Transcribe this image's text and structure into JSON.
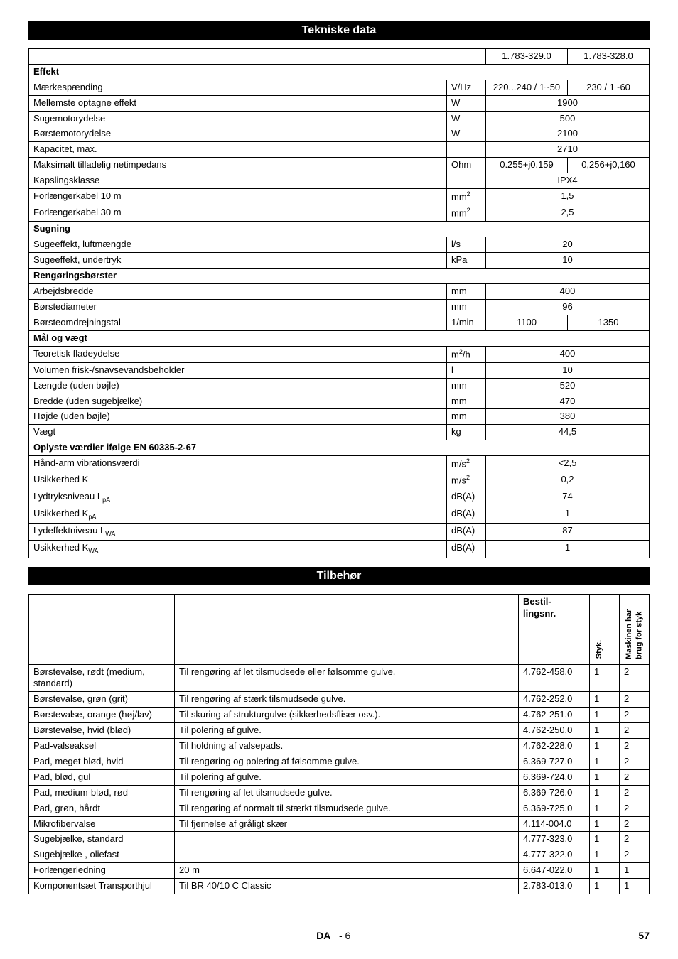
{
  "tech_title": "Tekniske data",
  "acc_title": "Tilbehør",
  "models": [
    "1.783-329.0",
    "1.783-328.0"
  ],
  "tech_sections": [
    {
      "head": "Effekt"
    },
    {
      "label": "Mærkespænding",
      "unit": "V/Hz",
      "v1": "220...240 / 1~50",
      "v2": "230 / 1~60"
    },
    {
      "label": "Mellemste optagne effekt",
      "unit": "W",
      "vspan": "1900"
    },
    {
      "label": "Sugemotorydelse",
      "unit": "W",
      "vspan": "500"
    },
    {
      "label": "Børstemotorydelse",
      "unit": "W",
      "vspan": "2100"
    },
    {
      "label": "Kapacitet, max.",
      "unit": "",
      "vspan": "2710"
    },
    {
      "label": "Maksimalt tilladelig netimpedans",
      "unit": "Ohm",
      "v1": "0.255+j0.159",
      "v2": "0,256+j0,160"
    },
    {
      "label": "Kapslingsklasse",
      "unit": "",
      "vspan": "IPX4"
    },
    {
      "label": "Forlængerkabel 10 m",
      "unit": "mm²",
      "vspan": "1,5"
    },
    {
      "label": "Forlængerkabel 30 m",
      "unit": "mm²",
      "vspan": "2,5"
    },
    {
      "head": "Sugning"
    },
    {
      "label": "Sugeeffekt, luftmængde",
      "unit": "l/s",
      "vspan": "20"
    },
    {
      "label": "Sugeeffekt, undertryk",
      "unit": "kPa",
      "vspan": "10"
    },
    {
      "head": "Rengøringsbørster"
    },
    {
      "label": "Arbejdsbredde",
      "unit": "mm",
      "vspan": "400"
    },
    {
      "label": "Børstediameter",
      "unit": "mm",
      "vspan": "96"
    },
    {
      "label": "Børsteomdrejningstal",
      "unit": "1/min",
      "v1": "1100",
      "v2": "1350"
    },
    {
      "head": "Mål og vægt"
    },
    {
      "label": "Teoretisk fladeydelse",
      "unit": "m²/h",
      "vspan": "400"
    },
    {
      "label": "Volumen frisk-/snavsevandsbeholder",
      "unit": "l",
      "vspan": "10"
    },
    {
      "label": "Længde (uden bøjle)",
      "unit": "mm",
      "vspan": "520"
    },
    {
      "label": "Bredde (uden sugebjælke)",
      "unit": "mm",
      "vspan": "470"
    },
    {
      "label": "Højde (uden bøjle)",
      "unit": "mm",
      "vspan": "380"
    },
    {
      "label": "Vægt",
      "unit": "kg",
      "vspan": "44,5"
    },
    {
      "head": "Oplyste værdier ifølge EN 60335-2-67"
    },
    {
      "label": "Hånd-arm vibrationsværdi",
      "unit": "m/s²",
      "vspan": "<2,5"
    },
    {
      "label": "Usikkerhed K",
      "unit": "m/s²",
      "vspan": "0,2"
    },
    {
      "label": "Lydtryksniveau LpA",
      "unit": "dB(A)",
      "vspan": "74",
      "sub": "pA"
    },
    {
      "label": "Usikkerhed KpA",
      "unit": "dB(A)",
      "vspan": "1",
      "sub": "pA"
    },
    {
      "label": "Lydeffektniveau LWA",
      "unit": "dB(A)",
      "vspan": "87",
      "sub": "WA"
    },
    {
      "label": "Usikkerhed KWA",
      "unit": "dB(A)",
      "vspan": "1",
      "sub": "WA"
    }
  ],
  "acc_head": {
    "order": "Bestil-lingsnr.",
    "styk": "Styk.",
    "need": "Maskinen har brug for styk"
  },
  "accessories": [
    {
      "name": "Børstevalse, rødt (medium, standard)",
      "desc": "Til rengøring af let tilsmudsede eller følsomme gulve.",
      "order": "4.762-458.0",
      "styk": "1",
      "need": "2"
    },
    {
      "name": "Børstevalse, grøn (grit)",
      "desc": "Til rengøring af stærk tilsmudsede gulve.",
      "order": "4.762-252.0",
      "styk": "1",
      "need": "2"
    },
    {
      "name": "Børstevalse, orange (høj/lav)",
      "desc": "Til skuring af strukturgulve (sikkerhedsfliser osv.).",
      "order": "4.762-251.0",
      "styk": "1",
      "need": "2"
    },
    {
      "name": "Børstevalse, hvid (blød)",
      "desc": "Til polering af gulve.",
      "order": "4.762-250.0",
      "styk": "1",
      "need": "2"
    },
    {
      "name": "Pad-valseaksel",
      "desc": "Til holdning af valsepads.",
      "order": "4.762-228.0",
      "styk": "1",
      "need": "2"
    },
    {
      "name": "Pad, meget blød, hvid",
      "desc": "Til rengøring og polering af følsomme gulve.",
      "order": "6.369-727.0",
      "styk": "1",
      "need": "2"
    },
    {
      "name": "Pad, blød, gul",
      "desc": "Til polering af gulve.",
      "order": "6.369-724.0",
      "styk": "1",
      "need": "2"
    },
    {
      "name": "Pad, medium-blød, rød",
      "desc": "Til rengøring af let tilsmudsede gulve.",
      "order": "6.369-726.0",
      "styk": "1",
      "need": "2"
    },
    {
      "name": "Pad, grøn, hårdt",
      "desc": "Til rengøring af normalt til stærkt tilsmudsede gulve.",
      "order": "6.369-725.0",
      "styk": "1",
      "need": "2"
    },
    {
      "name": "Mikrofibervalse",
      "desc": "Til fjernelse af gråligt skær",
      "order": "4.114-004.0",
      "styk": "1",
      "need": "2"
    },
    {
      "name": "Sugebjælke, standard",
      "desc": "",
      "order": "4.777-323.0",
      "styk": "1",
      "need": "2"
    },
    {
      "name": "Sugebjælke , oliefast",
      "desc": "",
      "order": "4.777-322.0",
      "styk": "1",
      "need": "2"
    },
    {
      "name": "Forlængerledning",
      "desc": "20 m",
      "order": "6.647-022.0",
      "styk": "1",
      "need": "1"
    },
    {
      "name": "Komponentsæt Transporthjul",
      "desc": "Til BR 40/10 C Classic",
      "order": "2.783-013.0",
      "styk": "1",
      "need": "1"
    }
  ],
  "footer": {
    "lang": "DA",
    "page_rel": "- 6",
    "page_abs": "57"
  }
}
